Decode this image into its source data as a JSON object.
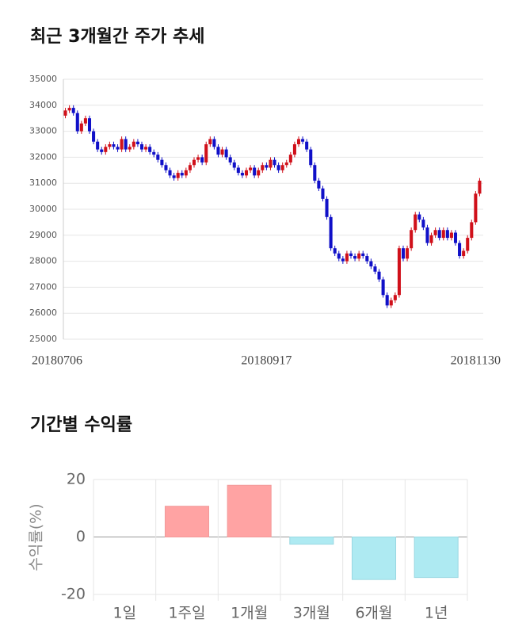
{
  "chart_data": [
    {
      "type": "candlestick",
      "title": "최근 3개월간 주가 추세",
      "categories": [
        "20180706",
        null,
        null,
        null,
        null,
        null,
        null,
        null,
        null,
        null,
        null,
        null,
        null,
        null,
        null,
        null,
        null,
        null,
        null,
        null,
        null,
        null,
        null,
        null,
        null,
        null,
        null,
        null,
        null,
        null,
        null,
        null,
        null,
        null,
        null,
        null,
        null,
        null,
        null,
        null,
        null,
        null,
        null,
        null,
        null,
        null,
        null,
        null,
        null,
        null,
        "20180917",
        null,
        null,
        null,
        null,
        null,
        null,
        null,
        null,
        null,
        null,
        null,
        null,
        null,
        null,
        null,
        null,
        null,
        null,
        null,
        null,
        null,
        null,
        null,
        null,
        null,
        null,
        null,
        null,
        null,
        null,
        null,
        null,
        null,
        null,
        null,
        null,
        null,
        null,
        null,
        null,
        null,
        null,
        null,
        null,
        null,
        null,
        null,
        null,
        null,
        null,
        null,
        null,
        "20181130"
      ],
      "open": [
        33600,
        33800,
        33900,
        33700,
        33000,
        33300,
        33500,
        33000,
        32600,
        32300,
        32200,
        32400,
        32500,
        32400,
        32300,
        32700,
        32300,
        32400,
        32600,
        32500,
        32300,
        32400,
        32200,
        32100,
        31900,
        31700,
        31500,
        31300,
        31200,
        31400,
        31300,
        31500,
        31700,
        31900,
        32000,
        31800,
        32500,
        32700,
        32400,
        32100,
        32300,
        32000,
        31800,
        31600,
        31400,
        31300,
        31500,
        31600,
        31300,
        31500,
        31700,
        31600,
        31900,
        31700,
        31500,
        31700,
        31800,
        32100,
        32500,
        32700,
        32600,
        32300,
        31700,
        31100,
        30800,
        30400,
        29700,
        28500,
        28300,
        28100,
        28000,
        28300,
        28200,
        28100,
        28300,
        28200,
        28000,
        27800,
        27600,
        27300,
        26700,
        26300,
        26500,
        26700,
        28500,
        28100,
        28500,
        29200,
        29800,
        29600,
        29300,
        28700,
        29000,
        29200,
        28900,
        29200,
        28900,
        29100,
        28700,
        28200,
        28400,
        28900,
        29500,
        30600
      ],
      "high": [
        33900,
        34000,
        34000,
        33800,
        33400,
        33600,
        33600,
        33100,
        32700,
        32400,
        32500,
        32600,
        32600,
        32500,
        32800,
        32800,
        32500,
        32700,
        32700,
        32600,
        32500,
        32500,
        32300,
        32200,
        32000,
        31800,
        31600,
        31400,
        31500,
        31500,
        31600,
        31800,
        32000,
        32100,
        32100,
        32600,
        32800,
        32800,
        32500,
        32400,
        32400,
        32100,
        31900,
        31700,
        31500,
        31600,
        31700,
        31700,
        31600,
        31800,
        31800,
        32000,
        32000,
        31800,
        31800,
        31900,
        32200,
        32600,
        32800,
        32800,
        32700,
        32400,
        31800,
        31200,
        30900,
        30500,
        29800,
        28600,
        28400,
        28200,
        28400,
        28400,
        28300,
        28400,
        28400,
        28300,
        28100,
        27900,
        27700,
        27400,
        26800,
        26600,
        26800,
        28600,
        28600,
        28600,
        29300,
        29900,
        29900,
        29700,
        29400,
        29100,
        29300,
        29300,
        29300,
        29300,
        29200,
        29200,
        28800,
        28500,
        29000,
        29600,
        30700,
        31200
      ],
      "low": [
        33500,
        33700,
        33600,
        32900,
        32900,
        33200,
        32900,
        32500,
        32200,
        32100,
        32100,
        32300,
        32300,
        32200,
        32200,
        32200,
        32200,
        32300,
        32400,
        32200,
        32200,
        32100,
        32000,
        31800,
        31600,
        31400,
        31200,
        31100,
        31100,
        31200,
        31200,
        31400,
        31600,
        31800,
        31700,
        31700,
        32400,
        32300,
        32000,
        32000,
        31900,
        31700,
        31500,
        31300,
        31200,
        31200,
        31400,
        31200,
        31200,
        31400,
        31500,
        31500,
        31600,
        31400,
        31400,
        31600,
        31700,
        32000,
        32400,
        32500,
        32200,
        31600,
        31000,
        30700,
        30300,
        29600,
        28400,
        28200,
        28000,
        27900,
        27900,
        28100,
        28000,
        28000,
        28100,
        27900,
        27700,
        27500,
        27200,
        26600,
        26200,
        26200,
        26400,
        26600,
        28000,
        28000,
        28400,
        29100,
        29500,
        29200,
        28600,
        28600,
        28900,
        28800,
        28800,
        28800,
        28800,
        28600,
        28100,
        28100,
        28300,
        28800,
        29400,
        30500
      ],
      "close": [
        33800,
        33900,
        33700,
        33000,
        33300,
        33500,
        33000,
        32600,
        32300,
        32200,
        32400,
        32500,
        32400,
        32300,
        32700,
        32300,
        32400,
        32600,
        32500,
        32300,
        32400,
        32200,
        32100,
        31900,
        31700,
        31500,
        31300,
        31200,
        31400,
        31300,
        31500,
        31700,
        31900,
        32000,
        31800,
        32500,
        32700,
        32400,
        32100,
        32300,
        32000,
        31800,
        31600,
        31400,
        31300,
        31500,
        31600,
        31300,
        31500,
        31700,
        31600,
        31900,
        31700,
        31500,
        31700,
        31800,
        32100,
        32500,
        32700,
        32600,
        32300,
        31700,
        31100,
        30800,
        30400,
        29700,
        28500,
        28300,
        28100,
        28000,
        28300,
        28200,
        28100,
        28300,
        28200,
        28000,
        27800,
        27600,
        27300,
        26700,
        26300,
        26500,
        26700,
        28500,
        28100,
        28500,
        29200,
        29800,
        29600,
        29300,
        28700,
        29000,
        29200,
        28900,
        29200,
        28900,
        29100,
        28700,
        28200,
        28400,
        28900,
        29500,
        30600,
        31100
      ],
      "up_color": "#d0101a",
      "down_color": "#1010c8",
      "ylim": [
        25000,
        35000
      ],
      "yticks": [
        25000,
        26000,
        27000,
        28000,
        29000,
        30000,
        31000,
        32000,
        33000,
        34000,
        35000
      ],
      "grid": true
    },
    {
      "type": "bar",
      "title": "기간별 수익률",
      "y_label": "수익률(%)",
      "categories": [
        "1일",
        "1주일",
        "1개월",
        "3개월",
        "6개월",
        "1년"
      ],
      "values": [
        0,
        10.7,
        18,
        -2.5,
        -14.8,
        -14.1
      ],
      "positive_color": "#ffa3a3",
      "negative_color": "#aeeaf2",
      "ylim": [
        -20,
        20
      ],
      "yticks": [
        -20,
        0,
        20
      ],
      "grid": true
    }
  ]
}
